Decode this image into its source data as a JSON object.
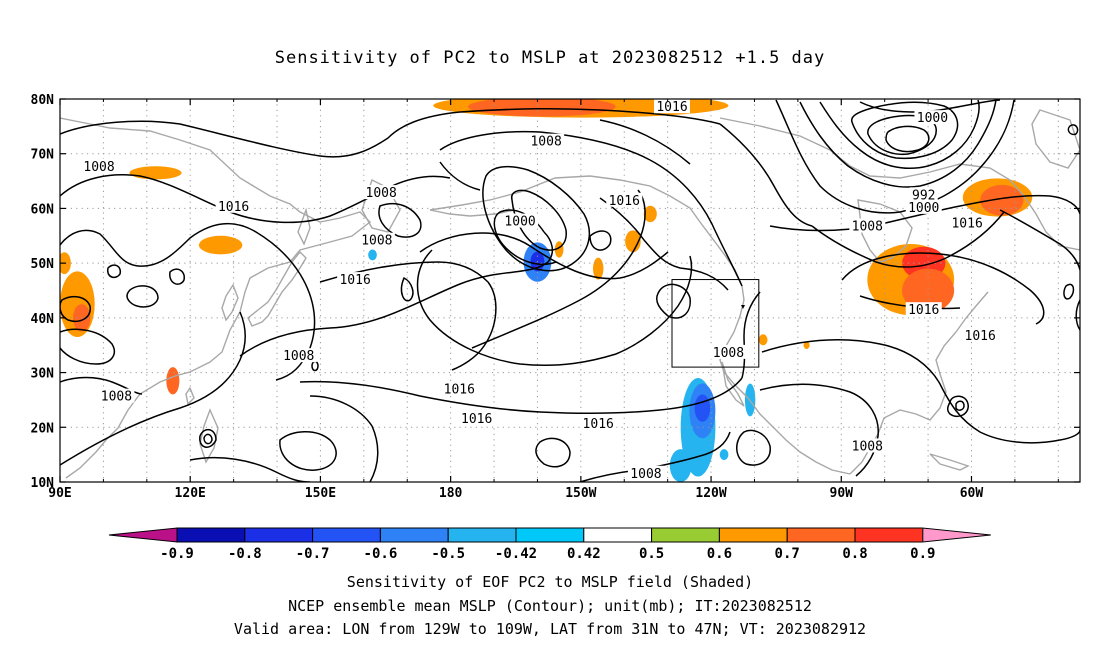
{
  "title": "Sensitivity of PC2 to MSLP at 2023082512 +1.5 day",
  "lat_labels": [
    "80N",
    "70N",
    "60N",
    "50N",
    "40N",
    "30N",
    "20N",
    "10N"
  ],
  "lon_labels": [
    "90E",
    "120E",
    "150E",
    "180",
    "150W",
    "120W",
    "90W",
    "60W"
  ],
  "contour_labels": [
    {
      "text": "1016",
      "lon": -129,
      "lat": 78.5
    },
    {
      "text": "1000",
      "lon": -69,
      "lat": 76.5
    },
    {
      "text": "1008",
      "lon": -158,
      "lat": 72.2
    },
    {
      "text": "1008",
      "lon": 99,
      "lat": 67.6
    },
    {
      "text": "992",
      "lon": -71,
      "lat": 62.4
    },
    {
      "text": "1000",
      "lon": -71,
      "lat": 60.1
    },
    {
      "text": "1008",
      "lon": 164,
      "lat": 62.8
    },
    {
      "text": "1016",
      "lon": -140,
      "lat": 61.4
    },
    {
      "text": "1016",
      "lon": 130,
      "lat": 60.3
    },
    {
      "text": "1000",
      "lon": -164,
      "lat": 57.6
    },
    {
      "text": "1008",
      "lon": -84,
      "lat": 56.7
    },
    {
      "text": "1016",
      "lon": -61,
      "lat": 57.2
    },
    {
      "text": "1008",
      "lon": 163,
      "lat": 54.1
    },
    {
      "text": "1016",
      "lon": 158,
      "lat": 46.9
    },
    {
      "text": "1016",
      "lon": -71,
      "lat": 41.4
    },
    {
      "text": "1016",
      "lon": -58,
      "lat": 36.7
    },
    {
      "text": "1008",
      "lon": -116,
      "lat": 33.6
    },
    {
      "text": "1008",
      "lon": 145,
      "lat": 33.0
    },
    {
      "text": "1016",
      "lon": -178,
      "lat": 26.9
    },
    {
      "text": "1008",
      "lon": 103,
      "lat": 25.6
    },
    {
      "text": "1016",
      "lon": -174,
      "lat": 21.5
    },
    {
      "text": "1016",
      "lon": -146,
      "lat": 20.6
    },
    {
      "text": "1008",
      "lon": -84,
      "lat": 16.5
    },
    {
      "text": "1008",
      "lon": -135,
      "lat": 11.5
    }
  ],
  "colorbar": {
    "levels": [
      "-0.9",
      "-0.8",
      "-0.7",
      "-0.6",
      "-0.5",
      "-0.42",
      "0.42",
      "0.5",
      "0.6",
      "0.7",
      "0.8",
      "0.9"
    ],
    "colors": [
      "#0a0fb4",
      "#1b30e6",
      "#2453f5",
      "#2e82f5",
      "#25b4ef",
      "#00c8f8",
      "#ffffff",
      "#99cc33",
      "#ff9900",
      "#ff6622",
      "#ff3322",
      "#ff0000"
    ],
    "low_end_color": "#bb1188",
    "high_end_color": "#ff99cc"
  },
  "shading": [
    {
      "kind": "pos",
      "value": 0.55,
      "lon": -150,
      "lat": 78.8,
      "rx": 34,
      "ry": 2.2
    },
    {
      "kind": "pos",
      "value": 0.6,
      "lon": -159,
      "lat": 78.6,
      "rx": 17,
      "ry": 1.8
    },
    {
      "kind": "pos",
      "value": 0.55,
      "lon": -54,
      "lat": 62,
      "rx": 8,
      "ry": 3.5
    },
    {
      "kind": "pos",
      "value": 0.65,
      "lon": -53,
      "lat": 61.5,
      "rx": 5,
      "ry": 2.8
    },
    {
      "kind": "pos",
      "value": 0.55,
      "lon": -74,
      "lat": 47,
      "rx": 10,
      "ry": 6.5
    },
    {
      "kind": "pos",
      "value": 0.7,
      "lon": -71,
      "lat": 50,
      "rx": 5,
      "ry": 3
    },
    {
      "kind": "pos",
      "value": 0.6,
      "lon": -70,
      "lat": 45,
      "rx": 6,
      "ry": 4
    },
    {
      "kind": "pos",
      "value": 0.5,
      "lon": 94,
      "lat": 42.5,
      "rx": 4,
      "ry": 6
    },
    {
      "kind": "pos",
      "value": 0.6,
      "lon": 95,
      "lat": 40,
      "rx": 2,
      "ry": 2.5
    },
    {
      "kind": "pos",
      "value": 0.5,
      "lon": 91,
      "lat": 50,
      "rx": 1.5,
      "ry": 2
    },
    {
      "kind": "pos",
      "value": 0.55,
      "lon": 127,
      "lat": 53.3,
      "rx": 5,
      "ry": 1.7
    },
    {
      "kind": "pos",
      "value": 0.5,
      "lon": 112,
      "lat": 66.5,
      "rx": 6,
      "ry": 1.2
    },
    {
      "kind": "pos",
      "value": 0.6,
      "lon": 116,
      "lat": 28.5,
      "rx": 1.5,
      "ry": 2.5
    },
    {
      "kind": "pos",
      "value": 0.5,
      "lon": -155,
      "lat": 52.5,
      "rx": 1,
      "ry": 1.5
    },
    {
      "kind": "pos",
      "value": 0.5,
      "lon": -146,
      "lat": 49,
      "rx": 1.2,
      "ry": 2
    },
    {
      "kind": "pos",
      "value": 0.5,
      "lon": -138,
      "lat": 54,
      "rx": 1.8,
      "ry": 2
    },
    {
      "kind": "pos",
      "value": 0.5,
      "lon": -134,
      "lat": 59,
      "rx": 1.5,
      "ry": 1.5
    },
    {
      "kind": "pos",
      "value": 0.5,
      "lon": -108,
      "lat": 36,
      "rx": 1,
      "ry": 1
    },
    {
      "kind": "pos",
      "value": 0.5,
      "lon": -98,
      "lat": 35,
      "rx": 0.7,
      "ry": 0.7
    },
    {
      "kind": "neg",
      "value": -0.55,
      "lon": -160,
      "lat": 50.2,
      "rx": 3.2,
      "ry": 3.6
    },
    {
      "kind": "neg",
      "value": -0.75,
      "lon": -160,
      "lat": 50.3,
      "rx": 1.6,
      "ry": 1.8
    },
    {
      "kind": "neg",
      "value": -0.5,
      "lon": -123,
      "lat": 20,
      "rx": 4,
      "ry": 9
    },
    {
      "kind": "neg",
      "value": -0.6,
      "lon": -122,
      "lat": 23,
      "rx": 3,
      "ry": 5
    },
    {
      "kind": "neg",
      "value": -0.7,
      "lon": -122,
      "lat": 23.5,
      "rx": 1.8,
      "ry": 2.5
    },
    {
      "kind": "neg",
      "value": -0.5,
      "lon": -111,
      "lat": 25,
      "rx": 1.2,
      "ry": 3
    },
    {
      "kind": "neg",
      "value": -0.5,
      "lon": -127,
      "lat": 13,
      "rx": 2.5,
      "ry": 3
    },
    {
      "kind": "neg",
      "value": -0.5,
      "lon": -117,
      "lat": 15,
      "rx": 1,
      "ry": 1
    },
    {
      "kind": "neg",
      "value": -0.5,
      "lon": 162,
      "lat": 51.5,
      "rx": 1,
      "ry": 1
    }
  ],
  "valid_box": {
    "lon_min": -129,
    "lon_max": -109,
    "lat_min": 31,
    "lat_max": 47
  },
  "caption": {
    "line1": "Sensitivity of EOF PC2 to MSLP field (Shaded)",
    "line2": "NCEP ensemble mean MSLP (Contour); unit(mb); IT:2023082512",
    "line3": "Valid area: LON from 129W to 109W, LAT from 31N to 47N; VT: 2023082912"
  }
}
